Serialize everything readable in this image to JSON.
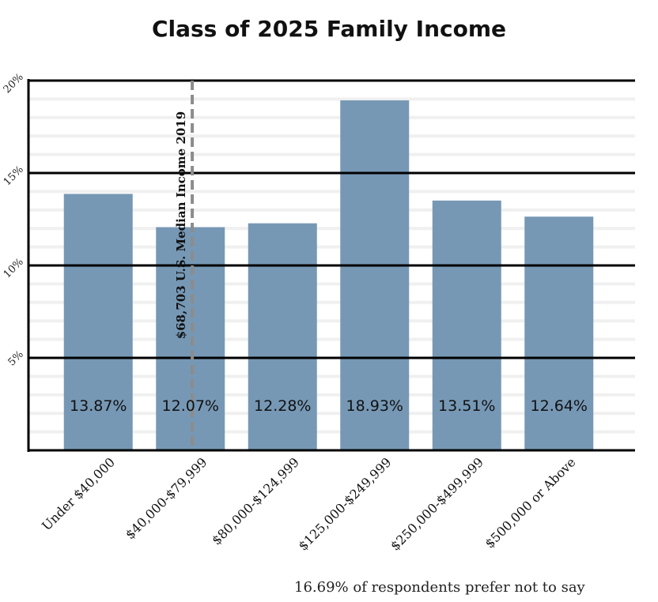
{
  "chart_data": {
    "type": "bar",
    "title": "Class of 2025 Family Income",
    "categories": [
      "Under $40,000",
      "$40,000-$79,999",
      "$80,000-$124,999",
      "$125,000-$249,999",
      "$250,000-$499,999",
      "$500,000 or Above"
    ],
    "values": [
      13.87,
      12.07,
      12.28,
      18.93,
      13.51,
      12.64
    ],
    "value_labels": [
      "13.87%",
      "12.07%",
      "12.28%",
      "18.93%",
      "13.51%",
      "12.64%"
    ],
    "yticks": [
      {
        "value": 5,
        "label": "5%"
      },
      {
        "value": 10,
        "label": "10%"
      },
      {
        "value": 15,
        "label": "15%"
      },
      {
        "value": 20,
        "label": "20%"
      }
    ],
    "ylim": [
      0,
      20
    ],
    "grid": true,
    "bar_color": "#7698b5",
    "reference_line": {
      "position": 1.0,
      "label": "$68,703 U.S. Median Income 2019",
      "style": "dashed",
      "color": "#8c8c8c"
    },
    "footnote": "16.69% of respondents prefer not to say"
  }
}
